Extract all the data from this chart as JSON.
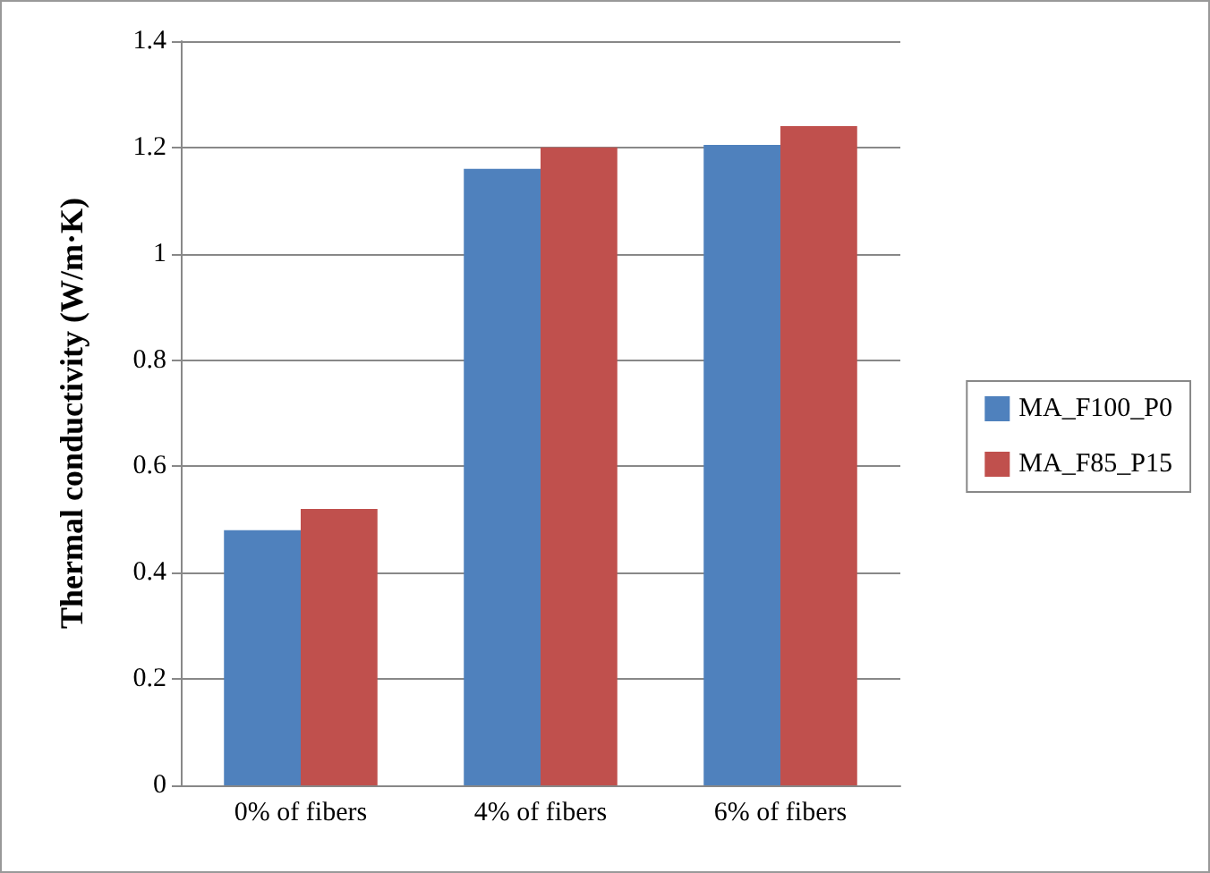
{
  "chart_data": {
    "type": "bar",
    "ylabel": "Thermal conductivity (W/m·K)",
    "categories": [
      "0% of fibers",
      "4% of fibers",
      "6% of fibers"
    ],
    "series": [
      {
        "name": "MA_F100_P0",
        "color": "#4f81bd",
        "values": [
          0.48,
          1.16,
          1.205
        ]
      },
      {
        "name": "MA_F85_P15",
        "color": "#c0504d",
        "values": [
          0.52,
          1.2,
          1.24
        ]
      }
    ],
    "ylim": [
      0,
      1.4
    ],
    "yticks": [
      0,
      0.2,
      0.4,
      0.6,
      0.8,
      1,
      1.2,
      1.4
    ],
    "grid": "y",
    "legend": "right"
  }
}
